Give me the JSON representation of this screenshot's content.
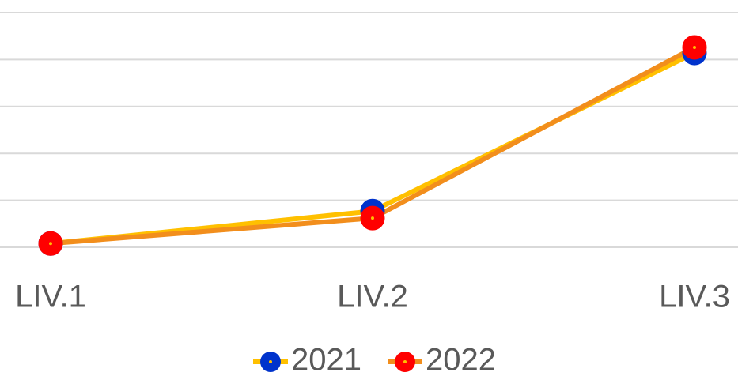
{
  "chart_data": {
    "type": "line",
    "categories": [
      "LIV.1",
      "LIV.2",
      "LIV.3"
    ],
    "series": [
      {
        "name": "2021",
        "color": "#ffc000",
        "marker_color": "#0033cc",
        "values": [
          0.08,
          0.77,
          4.14
        ]
      },
      {
        "name": "2022",
        "color": "#f28e1c",
        "marker_color": "#ff0000",
        "values": [
          0.08,
          0.62,
          4.26
        ]
      }
    ],
    "ylim": [
      0,
      5
    ],
    "yticks": [
      0,
      1,
      2,
      3,
      4,
      5
    ],
    "grid": true,
    "legend": "bottom"
  }
}
